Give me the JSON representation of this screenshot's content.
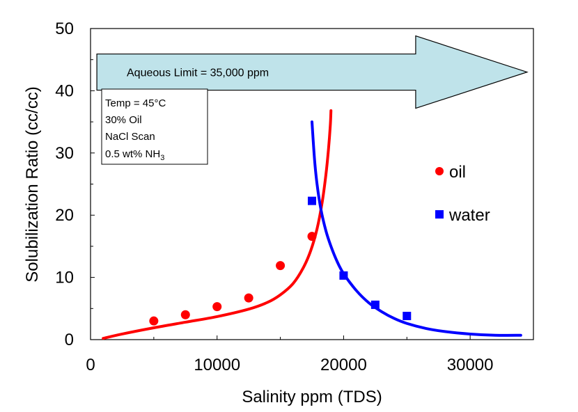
{
  "chart_data": {
    "type": "scatter",
    "title": "",
    "xlabel": "Salinity ppm (TDS)",
    "ylabel": "Solubilization Ratio (cc/cc)",
    "xlim": [
      0,
      35000
    ],
    "ylim": [
      0,
      50
    ],
    "x_ticks": [
      0,
      10000,
      20000,
      30000
    ],
    "x_tick_labels": [
      "0",
      "10000",
      "20000",
      "30000"
    ],
    "y_ticks": [
      0,
      10,
      20,
      30,
      40,
      50
    ],
    "y_tick_labels": [
      "0",
      "10",
      "20",
      "30",
      "40",
      "50"
    ],
    "grid": false,
    "legend_position": "right",
    "series": [
      {
        "name": "oil",
        "color": "#ff0000",
        "marker": "circle",
        "points": [
          [
            5000,
            3.0
          ],
          [
            7500,
            4.0
          ],
          [
            10000,
            5.3
          ],
          [
            12500,
            6.7
          ],
          [
            15000,
            11.9
          ],
          [
            17500,
            16.6
          ]
        ],
        "fit_curve": [
          [
            1000,
            0.2
          ],
          [
            2500,
            0.9
          ],
          [
            5000,
            1.9
          ],
          [
            7500,
            2.8
          ],
          [
            10000,
            3.7
          ],
          [
            12500,
            4.9
          ],
          [
            14000,
            6.0
          ],
          [
            15000,
            7.2
          ],
          [
            16000,
            9.0
          ],
          [
            16800,
            11.5
          ],
          [
            17400,
            14.3
          ],
          [
            17900,
            17.8
          ],
          [
            18300,
            22.0
          ],
          [
            18600,
            26.5
          ],
          [
            18800,
            30.5
          ],
          [
            18950,
            34.5
          ],
          [
            19000,
            36.8
          ]
        ]
      },
      {
        "name": "water",
        "color": "#0000ff",
        "marker": "square",
        "points": [
          [
            17500,
            22.3
          ],
          [
            20000,
            10.3
          ],
          [
            22500,
            5.6
          ],
          [
            25000,
            3.8
          ]
        ],
        "fit_curve": [
          [
            17500,
            35.0
          ],
          [
            17700,
            29.0
          ],
          [
            17900,
            25.0
          ],
          [
            18200,
            21.0
          ],
          [
            18600,
            17.5
          ],
          [
            19000,
            15.0
          ],
          [
            19500,
            12.5
          ],
          [
            20000,
            10.6
          ],
          [
            21000,
            7.9
          ],
          [
            22000,
            5.9
          ],
          [
            23000,
            4.5
          ],
          [
            24000,
            3.4
          ],
          [
            25000,
            2.6
          ],
          [
            26500,
            1.8
          ],
          [
            28000,
            1.3
          ],
          [
            30000,
            0.9
          ],
          [
            32000,
            0.7
          ],
          [
            34000,
            0.7
          ]
        ]
      }
    ],
    "annotations": {
      "arrow_label": "Aqueous Limit =  35,000 ppm",
      "arrow_x_range": [
        500,
        34500
      ],
      "arrow_y_center": 43.0,
      "arrow_fill": "#bfe3ea",
      "info_box_lines": [
        "Temp = 45°C",
        "30% Oil",
        "NaCl Scan"
      ],
      "info_box_formula_text": "0.5 wt% NH",
      "info_box_formula_subscript": "3"
    }
  }
}
